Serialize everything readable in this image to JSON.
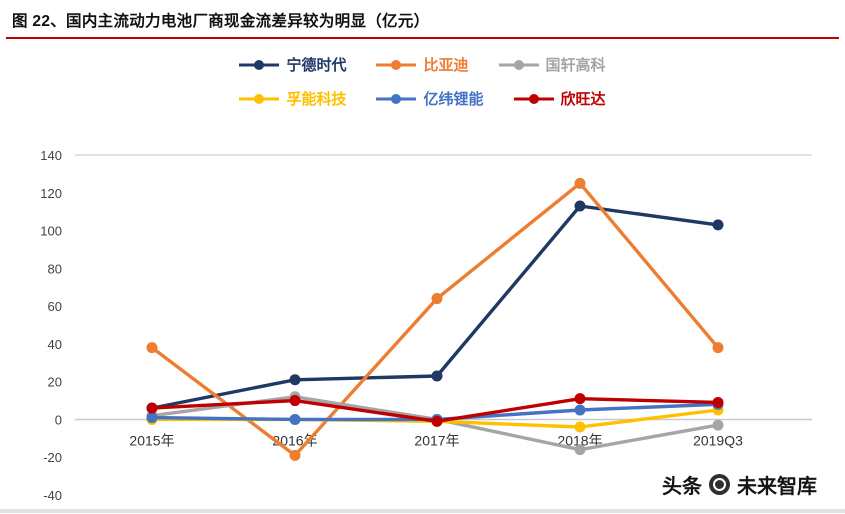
{
  "header": {
    "title": "图 22、国内主流动力电池厂商现金流差异较为明显（亿元）",
    "accent_color": "#c00000"
  },
  "chart_data": {
    "type": "line",
    "title": "图 22、国内主流动力电池厂商现金流差异较为明显（亿元）",
    "xlabel": "",
    "ylabel": "",
    "categories": [
      "2015年",
      "2016年",
      "2017年",
      "2018年",
      "2019Q3"
    ],
    "series": [
      {
        "name": "宁德时代",
        "color": "#1f3864",
        "values": [
          6,
          21,
          23,
          113,
          103
        ]
      },
      {
        "name": "比亚迪",
        "color": "#ed7d31",
        "values": [
          38,
          -19,
          64,
          125,
          38
        ]
      },
      {
        "name": "国轩高科",
        "color": "#a5a5a5",
        "values": [
          2,
          12,
          0,
          -16,
          -3
        ]
      },
      {
        "name": "孚能科技",
        "color": "#ffc000",
        "values": [
          0,
          0,
          -1,
          -4,
          5
        ]
      },
      {
        "name": "亿纬锂能",
        "color": "#4472c4",
        "values": [
          1,
          0,
          0,
          5,
          8
        ]
      },
      {
        "name": "欣旺达",
        "color": "#c00000",
        "values": [
          6,
          10,
          -1,
          11,
          9
        ]
      }
    ],
    "ylim": [
      -40,
      140
    ],
    "yticks": [
      140,
      120,
      100,
      80,
      60,
      40,
      20,
      0,
      -20,
      -40
    ],
    "grid": false,
    "legend_position": "top"
  },
  "watermark": {
    "prefix": "头条",
    "account": "未来智库"
  }
}
